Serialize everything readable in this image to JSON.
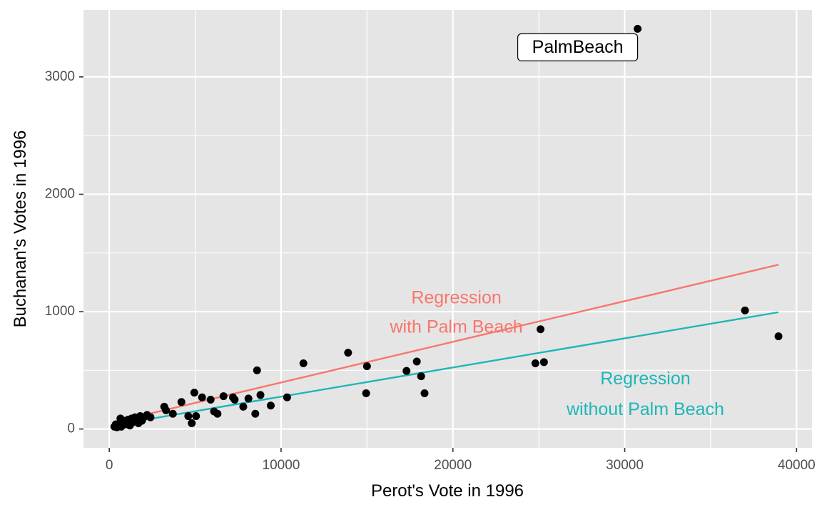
{
  "chart_data": {
    "type": "scatter",
    "xlabel": "Perot's Vote in 1996",
    "ylabel": "Buchanan's Votes in 1996",
    "xlim": [
      -1500,
      40900
    ],
    "ylim": [
      -160,
      3570
    ],
    "x_ticks": [
      0,
      10000,
      20000,
      30000,
      40000
    ],
    "y_ticks": [
      0,
      1000,
      2000,
      3000
    ],
    "grid": true,
    "points": [
      [
        300,
        20
      ],
      [
        380,
        40
      ],
      [
        450,
        15
      ],
      [
        520,
        30
      ],
      [
        600,
        50
      ],
      [
        650,
        90
      ],
      [
        700,
        20
      ],
      [
        800,
        60
      ],
      [
        900,
        70
      ],
      [
        1000,
        40
      ],
      [
        1100,
        80
      ],
      [
        1200,
        30
      ],
      [
        1300,
        90
      ],
      [
        1400,
        60
      ],
      [
        1500,
        100
      ],
      [
        1600,
        80
      ],
      [
        1700,
        50
      ],
      [
        1800,
        110
      ],
      [
        1900,
        70
      ],
      [
        2000,
        100
      ],
      [
        2200,
        120
      ],
      [
        2400,
        100
      ],
      [
        3200,
        190
      ],
      [
        3300,
        160
      ],
      [
        3700,
        130
      ],
      [
        4200,
        230
      ],
      [
        4600,
        110
      ],
      [
        4800,
        50
      ],
      [
        4950,
        310
      ],
      [
        5050,
        110
      ],
      [
        5400,
        270
      ],
      [
        5900,
        250
      ],
      [
        6100,
        150
      ],
      [
        6300,
        130
      ],
      [
        6650,
        280
      ],
      [
        7200,
        270
      ],
      [
        7300,
        250
      ],
      [
        7800,
        190
      ],
      [
        8100,
        260
      ],
      [
        8500,
        130
      ],
      [
        8600,
        500
      ],
      [
        8800,
        290
      ],
      [
        9400,
        200
      ],
      [
        10350,
        270
      ],
      [
        11300,
        560
      ],
      [
        13900,
        650
      ],
      [
        14950,
        305
      ],
      [
        15000,
        535
      ],
      [
        17300,
        495
      ],
      [
        17900,
        575
      ],
      [
        18150,
        450
      ],
      [
        18350,
        305
      ],
      [
        24800,
        560
      ],
      [
        25100,
        850
      ],
      [
        25300,
        570
      ],
      [
        30750,
        3410
      ],
      [
        37000,
        1010
      ],
      [
        38950,
        790
      ]
    ],
    "series": [
      {
        "name": "Regression with Palm Beach",
        "color": "#f8766d",
        "x": [
          300,
          38950
        ],
        "y": [
          60,
          1400
        ]
      },
      {
        "name": "Regression without Palm Beach",
        "color": "#1fb6b7",
        "x": [
          300,
          38950
        ],
        "y": [
          35,
          995
        ]
      }
    ],
    "annotations": [
      {
        "lines": [
          "Regression",
          "with Palm Beach"
        ],
        "color": "#f8766d",
        "x": 20200,
        "y": [
          1110,
          860
        ]
      },
      {
        "lines": [
          "Regression",
          "without Palm Beach"
        ],
        "color": "#1fb6b7",
        "x": 31200,
        "y": [
          420,
          160
        ]
      }
    ],
    "point_label": {
      "text": "PalmBeach",
      "x": 30750,
      "y": 3410
    },
    "colors": {
      "panel": "#e5e5e5",
      "grid": "#ffffff",
      "point": "#000000"
    }
  }
}
